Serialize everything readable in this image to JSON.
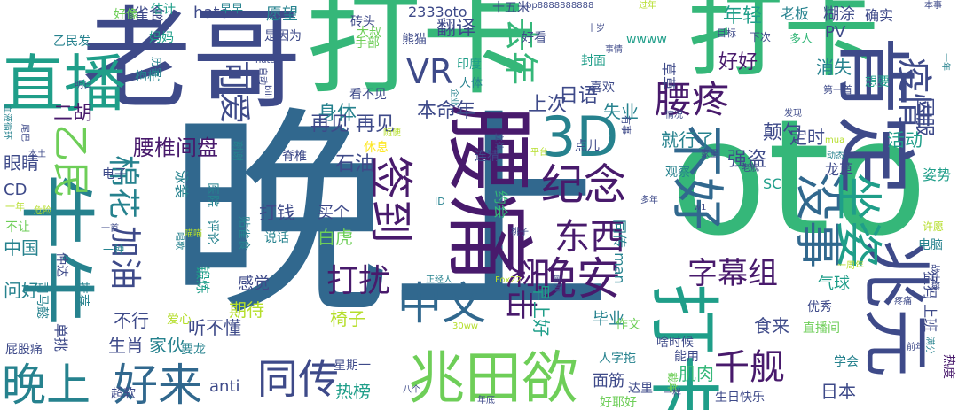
{
  "palette": {
    "dark_purple": "#481a6c",
    "indigo": "#3e4a89",
    "blue": "#31688e",
    "teal": "#26828e",
    "sea_green": "#1f9e89",
    "green": "#35b779",
    "lime": "#6ece58",
    "yellow_green": "#b5de2b",
    "yellow": "#fde725"
  },
  "words": [
    {
      "text": "晚上",
      "color": "blue"
    },
    {
      "text": "oto",
      "color": "green"
    },
    {
      "text": "打卡",
      "color": "green"
    },
    {
      "text": "老哥",
      "color": "indigo"
    },
    {
      "text": "打卡",
      "color": "green"
    },
    {
      "text": "肯定",
      "color": "indigo"
    },
    {
      "text": "腰痛",
      "color": "dark_purple"
    },
    {
      "text": "牛牛",
      "color": "teal"
    },
    {
      "text": "兆元",
      "color": "indigo"
    },
    {
      "text": "打卡",
      "color": "sea_green"
    },
    {
      "text": "兆田欲",
      "color": "lime"
    },
    {
      "text": "直播",
      "color": "sea_green"
    },
    {
      "text": "3D",
      "color": "teal"
    },
    {
      "text": "好来",
      "color": "blue"
    },
    {
      "text": "晚上",
      "color": "teal"
    },
    {
      "text": "签到",
      "color": "dark_purple"
    },
    {
      "text": "纪念",
      "color": "dark_purple"
    },
    {
      "text": "晚安",
      "color": "dark_purple"
    },
    {
      "text": "中文",
      "color": "blue"
    },
    {
      "text": "没事",
      "color": "blue"
    },
    {
      "text": "坐姿",
      "color": "sea_green"
    },
    {
      "text": "不好",
      "color": "blue"
    },
    {
      "text": "同传",
      "color": "indigo"
    },
    {
      "text": "乙民",
      "color": "lime"
    },
    {
      "text": "棉花",
      "color": "teal"
    },
    {
      "text": "加油",
      "color": "indigo"
    },
    {
      "text": "去年",
      "color": "green"
    },
    {
      "text": "可爱",
      "color": "indigo"
    },
    {
      "text": "腰疼",
      "color": "dark_purple"
    },
    {
      "text": "字幕组",
      "color": "dark_purple"
    },
    {
      "text": "东西",
      "color": "dark_purple"
    },
    {
      "text": "突击",
      "color": "dark_purple"
    },
    {
      "text": "疫情",
      "color": "indigo"
    },
    {
      "text": "千舰",
      "color": "dark_purple"
    },
    {
      "text": "打扰",
      "color": "dark_purple"
    },
    {
      "text": "VR",
      "color": "indigo"
    },
    {
      "text": "身体",
      "color": "teal"
    },
    {
      "text": "年轻",
      "color": "sea_green"
    },
    {
      "text": "好好",
      "color": "dark_purple"
    },
    {
      "text": "二胡",
      "color": "dark_purple"
    },
    {
      "text": "翻译",
      "color": "indigo"
    },
    {
      "text": "本命年",
      "color": "indigo"
    },
    {
      "text": "上次",
      "color": "indigo"
    },
    {
      "text": "再见 再见",
      "color": "indigo"
    },
    {
      "text": "腰椎间盘",
      "color": "dark_purple"
    },
    {
      "text": "日语",
      "color": "indigo"
    },
    {
      "text": "失业",
      "color": "teal"
    },
    {
      "text": "颠勺",
      "color": "indigo"
    },
    {
      "text": "消失",
      "color": "teal"
    },
    {
      "text": "因服",
      "color": "indigo"
    },
    {
      "text": "就行了",
      "color": "teal"
    },
    {
      "text": "强盗",
      "color": "indigo"
    },
    {
      "text": "定时",
      "color": "indigo"
    },
    {
      "text": "活动",
      "color": "sea_green"
    },
    {
      "text": "石油",
      "color": "indigo"
    },
    {
      "text": "打钱",
      "color": "indigo"
    },
    {
      "text": "买个",
      "color": "indigo"
    },
    {
      "text": "白虎",
      "color": "lime"
    },
    {
      "text": "眼睛",
      "color": "indigo"
    },
    {
      "text": "中国",
      "color": "teal"
    },
    {
      "text": "问好",
      "color": "teal"
    },
    {
      "text": "感觉",
      "color": "indigo"
    },
    {
      "text": "期待",
      "color": "yellow_green"
    },
    {
      "text": "听不懂",
      "color": "indigo"
    },
    {
      "text": "不行",
      "color": "indigo"
    },
    {
      "text": "生肖",
      "color": "indigo"
    },
    {
      "text": "家伙",
      "color": "teal"
    },
    {
      "text": "椅子",
      "color": "yellow_green"
    },
    {
      "text": "毕业",
      "color": "teal"
    },
    {
      "text": "食来",
      "color": "indigo"
    },
    {
      "text": "气球",
      "color": "sea_green"
    },
    {
      "text": "anti",
      "color": "indigo"
    },
    {
      "text": "热榜",
      "color": "sea_green"
    },
    {
      "text": "面筋",
      "color": "indigo"
    },
    {
      "text": "肌肉",
      "color": "green"
    },
    {
      "text": "日本",
      "color": "indigo"
    },
    {
      "text": "早上好",
      "color": "sea_green"
    },
    {
      "text": "雀食",
      "color": "indigo"
    },
    {
      "text": "hato",
      "color": "indigo"
    },
    {
      "text": "愿望",
      "color": "teal"
    },
    {
      "text": "老板",
      "color": "teal"
    },
    {
      "text": "糊涂",
      "color": "indigo"
    },
    {
      "text": "确实",
      "color": "indigo"
    },
    {
      "text": "好像",
      "color": "lime"
    },
    {
      "text": "估计",
      "color": "sea_green"
    },
    {
      "text": "早早",
      "color": "teal"
    },
    {
      "text": "十五米",
      "color": "indigo"
    },
    {
      "text": "2333oto",
      "color": "indigo"
    },
    {
      "text": "砖头",
      "color": "indigo"
    },
    {
      "text": "大叔",
      "color": "lime"
    },
    {
      "text": "熊猫",
      "color": "indigo"
    },
    {
      "text": "手部",
      "color": "lime"
    },
    {
      "text": "是因为",
      "color": "indigo"
    },
    {
      "text": "妈妈",
      "color": "sea_green"
    },
    {
      "text": "乙民发",
      "color": "teal"
    },
    {
      "text": "枸杞",
      "color": "teal"
    },
    {
      "text": "wwww",
      "color": "sea_green"
    },
    {
      "text": "PV",
      "color": "indigo"
    },
    {
      "text": "多人",
      "color": "green"
    },
    {
      "text": "下次",
      "color": "indigo"
    },
    {
      "text": "草草",
      "color": "indigo"
    },
    {
      "text": "喜欢",
      "color": "indigo"
    },
    {
      "text": "封面",
      "color": "sea_green"
    },
    {
      "text": "想要",
      "color": "sea_green"
    },
    {
      "text": "印度",
      "color": "sea_green"
    },
    {
      "text": "好看",
      "color": "indigo"
    },
    {
      "text": "看不见",
      "color": "indigo"
    },
    {
      "text": "人体",
      "color": "teal"
    },
    {
      "text": "龙草",
      "color": "indigo"
    },
    {
      "text": "SC",
      "color": "sea_green"
    },
    {
      "text": "观察",
      "color": "teal"
    },
    {
      "text": "连猜",
      "color": "indigo"
    },
    {
      "text": "点儿",
      "color": "indigo"
    },
    {
      "text": "休息",
      "color": "yellow"
    },
    {
      "text": "脊椎",
      "color": "indigo"
    },
    {
      "text": "泳装",
      "color": "teal"
    },
    {
      "text": "医院",
      "color": "teal"
    },
    {
      "text": "评论",
      "color": "teal"
    },
    {
      "text": "电子",
      "color": "indigo"
    },
    {
      "text": "锻炼",
      "color": "sea_green"
    },
    {
      "text": "说话",
      "color": "teal"
    },
    {
      "text": "约会",
      "color": "green"
    },
    {
      "text": "贴雀食",
      "color": "teal"
    },
    {
      "text": "同传 man",
      "color": "teal"
    },
    {
      "text": "姿势",
      "color": "sea_green"
    },
    {
      "text": "作文",
      "color": "lime"
    },
    {
      "text": "人字拖",
      "color": "teal"
    },
    {
      "text": "啥时候",
      "color": "indigo"
    },
    {
      "text": "能用",
      "color": "indigo"
    },
    {
      "text": "达里",
      "color": "indigo"
    },
    {
      "text": "生日快乐",
      "color": "indigo"
    },
    {
      "text": "好耶好",
      "color": "lime"
    },
    {
      "text": "截单",
      "color": "lime"
    },
    {
      "text": "星期一",
      "color": "indigo"
    },
    {
      "text": "要龙",
      "color": "teal"
    },
    {
      "text": "超软",
      "color": "indigo"
    },
    {
      "text": "直播间",
      "color": "lime"
    },
    {
      "text": "学会",
      "color": "teal"
    },
    {
      "text": "优秀",
      "color": "indigo"
    },
    {
      "text": "猛犸 上班",
      "color": "indigo"
    },
    {
      "text": "热度",
      "color": "dark_purple"
    },
    {
      "text": "CD",
      "color": "indigo"
    },
    {
      "text": "爱心",
      "color": "yellow_green"
    },
    {
      "text": "屁股痛",
      "color": "indigo"
    },
    {
      "text": "单挑",
      "color": "indigo"
    },
    {
      "text": "推荐",
      "color": "teal"
    },
    {
      "text": "司马懿",
      "color": "teal"
    },
    {
      "text": "仲达",
      "color": "indigo"
    },
    {
      "text": "不让",
      "color": "lime"
    },
    {
      "text": "电脑",
      "color": "teal"
    },
    {
      "text": "许愿",
      "color": "yellow_green"
    },
    {
      "text": "历害",
      "color": "teal"
    },
    {
      "text": "目标",
      "color": "indigo"
    },
    {
      "text": "一年",
      "color": "teal"
    },
    {
      "text": "第一首",
      "color": "indigo"
    },
    {
      "text": "pp8888888888",
      "color": "indigo"
    },
    {
      "text": "本事",
      "color": "indigo"
    },
    {
      "text": "事情",
      "color": "indigo"
    },
    {
      "text": "有事",
      "color": "indigo"
    },
    {
      "text": "企业",
      "color": "teal"
    },
    {
      "text": "家里",
      "color": "indigo"
    },
    {
      "text": "动态",
      "color": "teal"
    },
    {
      "text": "发现",
      "color": "indigo"
    },
    {
      "text": "情况",
      "color": "indigo"
    },
    {
      "text": "mua",
      "color": "yellow_green"
    },
    {
      "text": "危险",
      "color": "yellow_green"
    },
    {
      "text": "满分",
      "color": "teal"
    },
    {
      "text": "正经人",
      "color": "teal"
    },
    {
      "text": "30ww",
      "color": "yellow_green"
    },
    {
      "text": "w1",
      "color": "indigo"
    },
    {
      "text": "ID",
      "color": "teal"
    },
    {
      "text": "唱歌",
      "color": "teal"
    },
    {
      "text": "一首",
      "color": "indigo"
    },
    {
      "text": "一年",
      "color": "yellow_green"
    },
    {
      "text": "年底",
      "color": "indigo"
    },
    {
      "text": "前年",
      "color": "indigo"
    },
    {
      "text": "立体",
      "color": "indigo"
    },
    {
      "text": "平台",
      "color": "yellow_green"
    },
    {
      "text": "多年",
      "color": "indigo"
    },
    {
      "text": "过年",
      "color": "yellow_green"
    },
    {
      "text": "老舰",
      "color": "indigo"
    },
    {
      "text": "桃子",
      "color": "indigo"
    },
    {
      "text": "一周年",
      "color": "yellow_green"
    },
    {
      "text": "十岁",
      "color": "indigo"
    },
    {
      "text": "一种",
      "color": "teal"
    },
    {
      "text": "本土",
      "color": "indigo"
    },
    {
      "text": "血液循环",
      "color": "teal"
    },
    {
      "text": "尾巴",
      "color": "indigo"
    },
    {
      "text": "hato",
      "color": "indigo"
    },
    {
      "text": "自动",
      "color": "indigo"
    },
    {
      "text": "画师",
      "color": "indigo"
    },
    {
      "text": "战士链",
      "color": "indigo"
    },
    {
      "text": "谢谢",
      "color": "teal"
    },
    {
      "text": "疼痛",
      "color": "indigo"
    },
    {
      "text": "Fox22",
      "color": "yellow_green"
    },
    {
      "text": "明日",
      "color": "indigo"
    },
    {
      "text": "喵喵",
      "color": "yellow_green"
    },
    {
      "text": "随便",
      "color": "yellow_green"
    },
    {
      "text": "bili",
      "color": "indigo"
    },
    {
      "text": "八个",
      "color": "indigo"
    },
    {
      "text": "一样",
      "color": "indigo"
    }
  ]
}
